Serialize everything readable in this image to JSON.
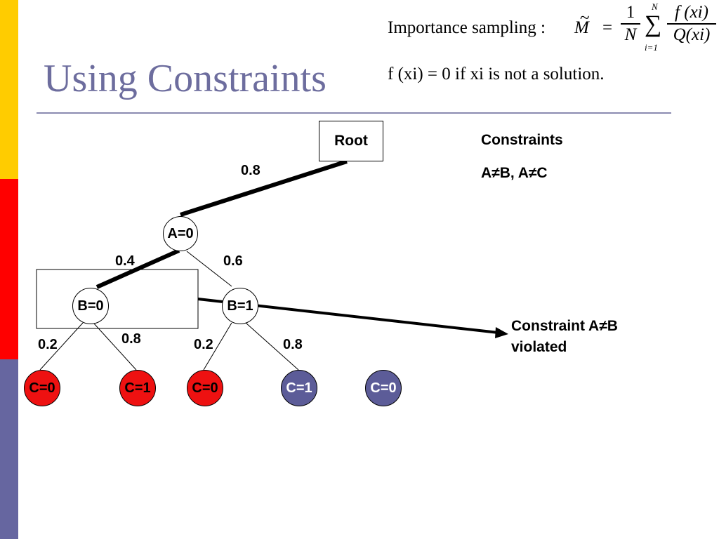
{
  "slide": {
    "title": "Using Constraints",
    "formula": {
      "importance_label": "Importance  sampling :",
      "estimator_symbol": "M",
      "tilde": "~",
      "equals": "=",
      "fraction1_num": "1",
      "fraction1_den": "N",
      "sum_upper": "N",
      "sum_lower": "i=1",
      "sum_symbol": "∑",
      "fraction2_num": "f (xi)",
      "fraction2_den": "Q(xi)",
      "line2": "f (xi) = 0 if  xi  is not a solution."
    }
  },
  "tree": {
    "root": "Root",
    "nodes": {
      "a0": "A=0",
      "b0": "B=0",
      "b1": "B=1",
      "c0_left": "C=0",
      "c1_left": "C=1",
      "c0_mid": "C=0",
      "c1_right": "C=1",
      "c0_far": "C=0"
    },
    "edge_labels": {
      "root_a0": "0.8",
      "a0_b0": "0.4",
      "a0_b1": "0.6",
      "b0_c0": "0.2",
      "b0_c1": "0.8",
      "b1_c0": "0.2",
      "b1_c1": "0.8"
    },
    "colors": {
      "violated": "#ee1111",
      "satisfied": "#5c5c98"
    }
  },
  "annotations": {
    "constraints_heading": "Constraints",
    "constraints_list": "A≠B, A≠C",
    "violation_line1": "Constraint A≠B",
    "violation_line2": "violated"
  }
}
